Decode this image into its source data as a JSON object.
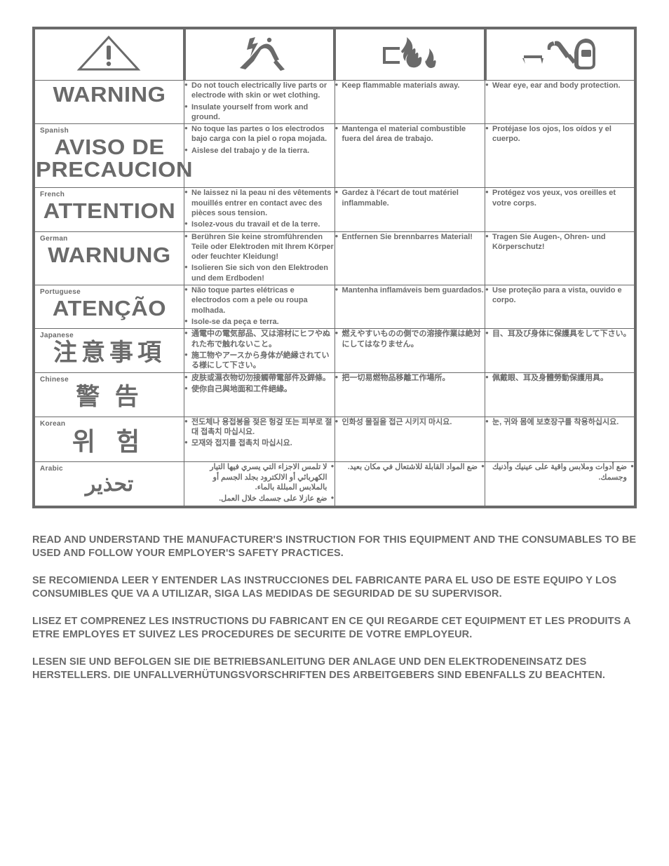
{
  "iconColor": "#6a6a6a",
  "rows": [
    {
      "langTag": "",
      "langWord": "WARNING",
      "langClass": "big",
      "rtl": false,
      "c1": [
        "Do not touch electrically live parts or electrode with skin or wet clothing.",
        "Insulate yourself from work and ground."
      ],
      "c2": [
        "Keep flammable materials away."
      ],
      "c3": [
        "Wear eye, ear and body protection."
      ]
    },
    {
      "langTag": "Spanish",
      "langWord": "AVISO DE PRECAUCION",
      "langClass": "big",
      "rtl": false,
      "c1": [
        "No toque las partes o los electrodos bajo carga con la piel o ropa mojada.",
        "Aislese del trabajo y de la tierra."
      ],
      "c2": [
        "Mantenga el material combustible fuera del área de trabajo."
      ],
      "c3": [
        "Protéjase los ojos, los oídos y el cuerpo."
      ]
    },
    {
      "langTag": "French",
      "langWord": "ATTENTION",
      "langClass": "big",
      "rtl": false,
      "c1": [
        "Ne laissez ni la peau ni des vêtements mouillés entrer en contact avec des pièces sous tension.",
        "Isolez-vous du travail et de la terre."
      ],
      "c2": [
        "Gardez à l'écart de tout matériel inflammable."
      ],
      "c3": [
        "Protégez vos yeux, vos oreilles et votre corps."
      ]
    },
    {
      "langTag": "German",
      "langWord": "WARNUNG",
      "langClass": "big",
      "rtl": false,
      "c1": [
        "Berühren Sie keine stromführenden Teile oder Elektroden mit Ihrem Körper oder feuchter Kleidung!",
        "Isolieren Sie sich von den Elektroden und dem Erdboden!"
      ],
      "c2": [
        "Entfernen Sie brennbarres Material!"
      ],
      "c3": [
        "Tragen Sie Augen-, Ohren- und Körperschutz!"
      ]
    },
    {
      "langTag": "Portuguese",
      "langWord": "ATENÇÃO",
      "langClass": "big",
      "rtl": false,
      "c1": [
        "Não toque partes elétricas e electrodos com a pele ou roupa molhada.",
        "Isole-se da peça e terra."
      ],
      "c2": [
        "Mantenha inflamáveis bem guardados."
      ],
      "c3": [
        "Use proteção para a vista, ouvido e corpo."
      ]
    },
    {
      "langTag": "Japanese",
      "langWord": "注意事項",
      "langClass": "cjk",
      "rtl": false,
      "c1": [
        "通電中の電気部品、又は溶材にヒフやぬれた布で触れないこと。",
        "施工物やアースから身体が絶縁されている様にして下さい。"
      ],
      "c2": [
        "燃えやすいものの側での溶接作業は絶対にしてはなりません。"
      ],
      "c3": [
        "目、耳及び身体に保護具をして下さい。"
      ]
    },
    {
      "langTag": "Chinese",
      "langWord": "警 告",
      "langClass": "cjk",
      "rtl": false,
      "c1": [
        "皮肤或濕衣物切勿接觸帶電部件及銲條。",
        "使你自己與地面和工件絕緣。"
      ],
      "c2": [
        "把一切易燃物品移離工作場所。"
      ],
      "c3": [
        "佩戴眼、耳及身體勞動保護用具。"
      ]
    },
    {
      "langTag": "Korean",
      "langWord": "위 험",
      "langClass": "ko",
      "rtl": false,
      "c1": [
        "전도체나 용접봉을 젖은 헝겊 또는 피부로 절대 접촉치 마십시요.",
        "모재와 접지를 접촉치 마십시요."
      ],
      "c2": [
        "인화성 물질을 접근 시키지 마시요."
      ],
      "c3": [
        "눈, 귀와 몸에 보호장구를 착용하십시요."
      ]
    },
    {
      "langTag": "Arabic",
      "langWord": "تحذير",
      "langClass": "ar",
      "rtl": true,
      "c1": [
        "لا تلمس الاجزاء التي يسري فيها التيار الكهربائي أو الالكترود بجلد الجسم أو بالملابس المبللة بالماء.",
        "ضع عازلا على جسمك خلال العمل."
      ],
      "c2": [
        "ضع المواد القابلة للاشتعال في مكان بعيد."
      ],
      "c3": [
        "ضع أدوات وملابس واقية على عينيك وأذنيك وجسمك."
      ]
    }
  ],
  "footer": [
    "READ AND UNDERSTAND THE MANUFACTURER'S INSTRUCTION FOR THIS EQUIPMENT AND THE CONSUMABLES TO BE USED AND FOLLOW YOUR EMPLOYER'S SAFETY PRACTICES.",
    "SE RECOMIENDA LEER Y ENTENDER LAS INSTRUCCIONES DEL FABRICANTE PARA EL USO DE ESTE EQUIPO Y LOS CONSUMIBLES QUE VA A UTILIZAR, SIGA LAS MEDIDAS DE SEGURIDAD DE SU SUPERVISOR.",
    "LISEZ ET COMPRENEZ LES INSTRUCTIONS DU FABRICANT EN CE QUI REGARDE CET EQUIPMENT ET LES PRODUITS A ETRE EMPLOYES ET SUIVEZ LES PROCEDURES DE SECURITE DE VOTRE EMPLOYEUR.",
    "LESEN SIE UND BEFOLGEN SIE DIE BETRIEBSANLEITUNG DER ANLAGE UND DEN ELEKTRODENEINSATZ DES HERSTELLERS. DIE UNFALLVERHÜTUNGSVORSCHRIFTEN DES ARBEITGEBERS SIND EBENFALLS ZU BEACHTEN."
  ]
}
